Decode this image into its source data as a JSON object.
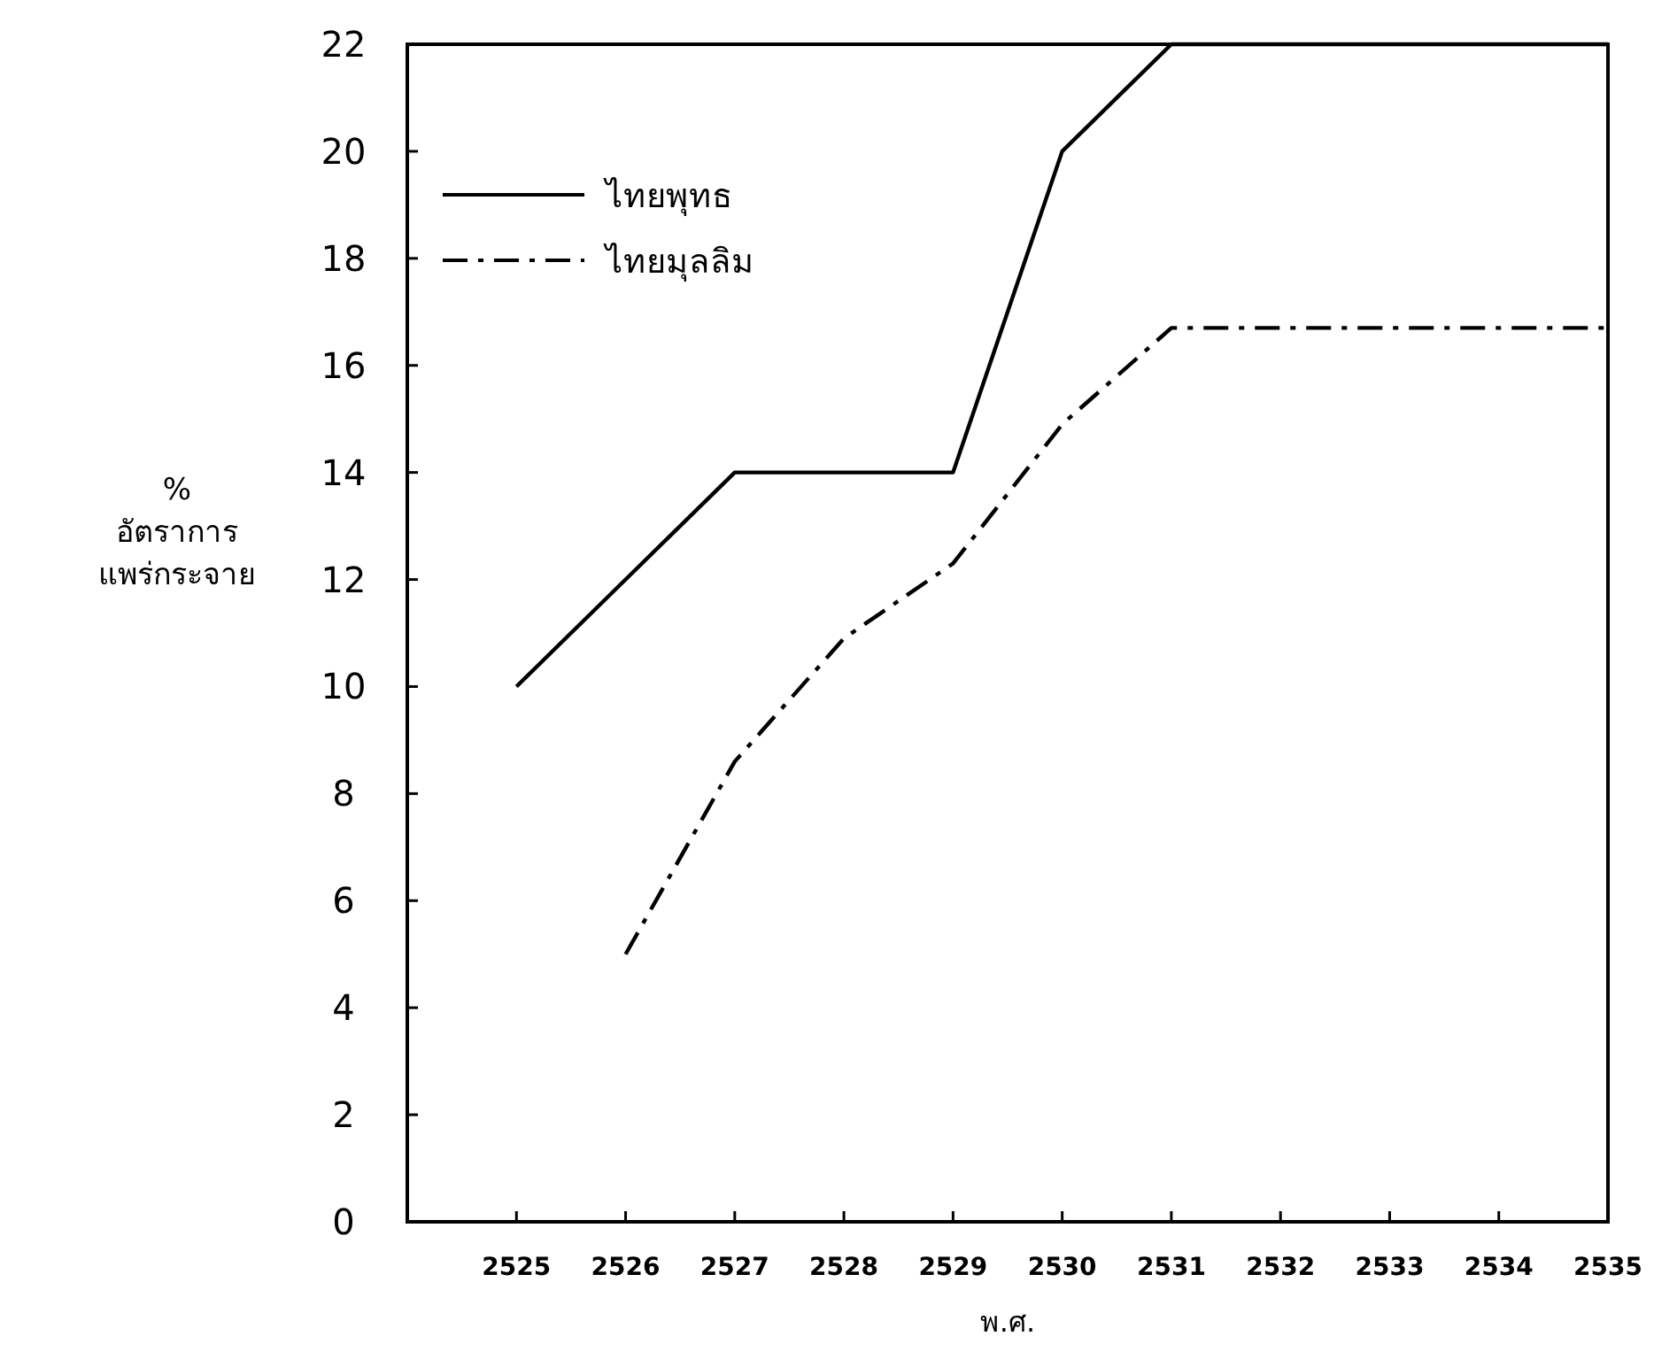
{
  "chart_data": {
    "type": "line",
    "xlabel": "พ.ศ.",
    "ylabel": "% อัตราการ แพร่กระจาย",
    "x": [
      2525,
      2526,
      2527,
      2528,
      2529,
      2530,
      2531,
      2532,
      2533,
      2534,
      2535
    ],
    "series": [
      {
        "name": "ไทยพุทธ",
        "color": "#000000",
        "line_style": "solid",
        "values": [
          10,
          12,
          14,
          14,
          14,
          20,
          22,
          22,
          22,
          22,
          22
        ]
      },
      {
        "name": "ไทยมุลลิม",
        "color": "#000000",
        "line_style": "dashed",
        "values": [
          null,
          5,
          8.6,
          10.9,
          12.3,
          14.9,
          16.7,
          16.7,
          16.7,
          16.7,
          16.7
        ]
      }
    ],
    "xlim": [
      2524,
      2535
    ],
    "ylim": [
      0,
      22
    ],
    "xticks": [
      2525,
      2526,
      2527,
      2528,
      2529,
      2530,
      2531,
      2532,
      2533,
      2534,
      2535
    ],
    "yticks": [
      0,
      2,
      4,
      6,
      8,
      10,
      12,
      14,
      16,
      18,
      20,
      22
    ],
    "legend": "top left",
    "marker": "none",
    "grid": false
  }
}
